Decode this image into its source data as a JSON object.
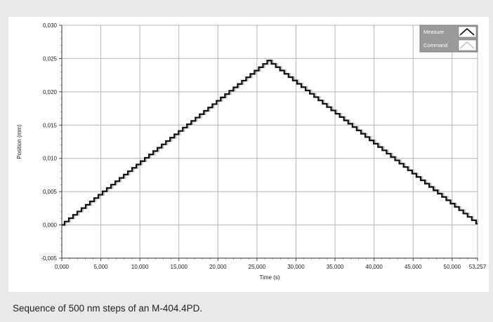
{
  "caption": "Sequence of 500 nm steps of an M-404.4PD.",
  "chart_data": {
    "type": "line",
    "xlabel": "Time (s)",
    "ylabel": "Position  (mm)",
    "xlim": [
      0,
      53.257
    ],
    "ylim": [
      -0.005,
      0.03
    ],
    "grid": true,
    "legend_position": "top-right",
    "x_ticks": [
      {
        "value": 0,
        "label": "0,000"
      },
      {
        "value": 5,
        "label": "5,000"
      },
      {
        "value": 10,
        "label": "10,000"
      },
      {
        "value": 15,
        "label": "15,000"
      },
      {
        "value": 20,
        "label": "20,000"
      },
      {
        "value": 25,
        "label": "25,000"
      },
      {
        "value": 30,
        "label": "30,000"
      },
      {
        "value": 35,
        "label": "35,000"
      },
      {
        "value": 40,
        "label": "40,000"
      },
      {
        "value": 45,
        "label": "45,000"
      },
      {
        "value": 50,
        "label": "50,000"
      },
      {
        "value": 53.257,
        "label": "53,257"
      }
    ],
    "y_ticks": [
      {
        "value": -0.005,
        "label": "-0,005"
      },
      {
        "value": 0,
        "label": "0,000"
      },
      {
        "value": 0.005,
        "label": "0,005"
      },
      {
        "value": 0.01,
        "label": "0,010"
      },
      {
        "value": 0.015,
        "label": "0,015"
      },
      {
        "value": 0.02,
        "label": "0,020"
      },
      {
        "value": 0.025,
        "label": "0,025"
      },
      {
        "value": 0.03,
        "label": "0,030"
      }
    ],
    "series": [
      {
        "name": "Measure",
        "color": "#111111",
        "style": "staircase",
        "x": [
          0,
          26.5,
          53.257
        ],
        "y": [
          0,
          0.0247,
          0.0002
        ]
      },
      {
        "name": "Command",
        "color": "#c4c4c4",
        "style": "staircase",
        "x": [
          0,
          26.5,
          53.257
        ],
        "y": [
          0,
          0.0247,
          0.0002
        ]
      }
    ]
  }
}
